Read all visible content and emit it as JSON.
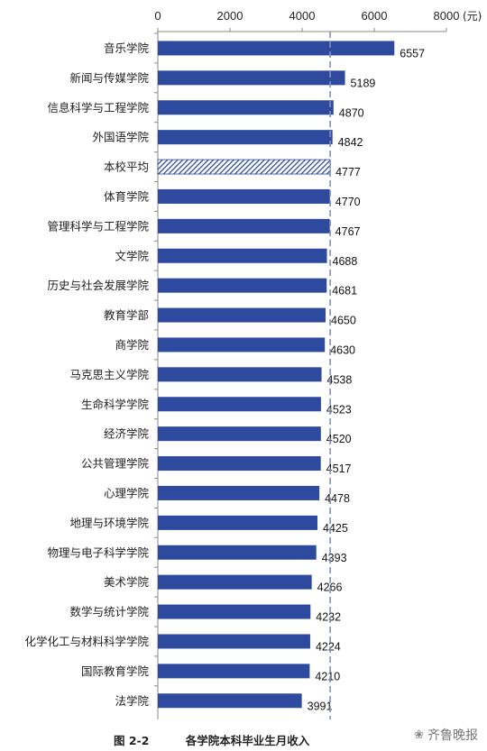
{
  "chart_data": {
    "type": "bar",
    "orientation": "horizontal",
    "categories": [
      "音乐学院",
      "新闻与传媒学院",
      "信息科学与工程学院",
      "外国语学院",
      "本校平均",
      "体育学院",
      "管理科学与工程学院",
      "文学院",
      "历史与社会发展学院",
      "教育学部",
      "商学院",
      "马克思主义学院",
      "生命科学学院",
      "经济学院",
      "公共管理学院",
      "心理学院",
      "地理与环境学院",
      "物理与电子科学学院",
      "美术学院",
      "数学与统计学院",
      "化学化工与材料科学学院",
      "国际教育学院",
      "法学院"
    ],
    "values": [
      6557,
      5189,
      4870,
      4842,
      4777,
      4770,
      4767,
      4688,
      4681,
      4650,
      4630,
      4538,
      4523,
      4520,
      4517,
      4478,
      4425,
      4393,
      4266,
      4232,
      4224,
      4210,
      3991
    ],
    "highlight_category": "本校平均",
    "reference_line": 4777,
    "xlim": [
      0,
      8000
    ],
    "xticks": [
      "0",
      "2000",
      "4000",
      "6000",
      "8000"
    ],
    "x_unit": "(元)",
    "axis_position": "top",
    "grid": false,
    "colors": {
      "bar": "#2E4A9E",
      "highlight": "#2E4A9E",
      "reference": "#7F8FB8"
    }
  },
  "caption": {
    "number": "图 2-2",
    "text": "各学院本科毕业生月收入"
  },
  "watermark": {
    "icon": "wechat-icon",
    "glyph": "❀",
    "text": "齐鲁晚报"
  }
}
